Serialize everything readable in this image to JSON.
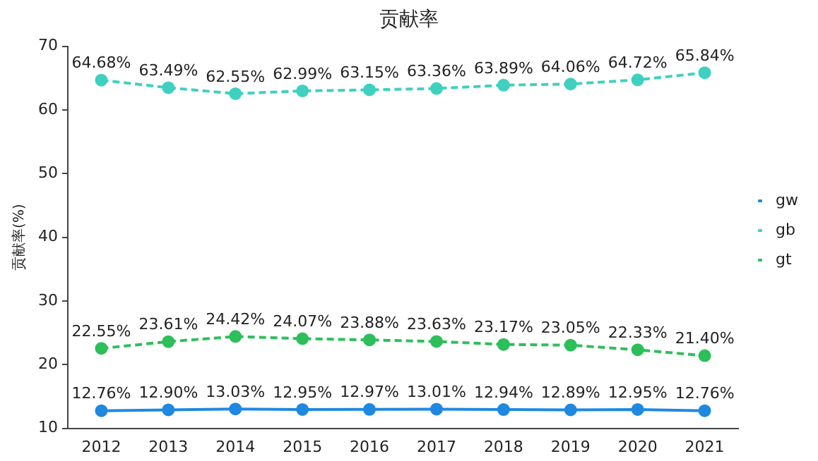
{
  "chart_data": {
    "type": "line",
    "title": "贡献率",
    "ylabel": "贡献率(%)",
    "categories": [
      "2012",
      "2013",
      "2014",
      "2015",
      "2016",
      "2017",
      "2018",
      "2019",
      "2020",
      "2021"
    ],
    "series": [
      {
        "name": "gw",
        "color": "#1f88e0",
        "line_style": "solid",
        "values": [
          12.76,
          12.9,
          13.03,
          12.95,
          12.97,
          13.01,
          12.94,
          12.89,
          12.95,
          12.76
        ],
        "value_labels": [
          "12.76%",
          "12.90%",
          "13.03%",
          "12.95%",
          "12.97%",
          "13.01%",
          "12.94%",
          "12.89%",
          "12.95%",
          "12.76%"
        ]
      },
      {
        "name": "gb",
        "color": "#3fd0c0",
        "line_style": "dashed",
        "values": [
          64.68,
          63.49,
          62.55,
          62.99,
          63.15,
          63.36,
          63.89,
          64.06,
          64.72,
          65.84
        ],
        "value_labels": [
          "64.68%",
          "63.49%",
          "62.55%",
          "62.99%",
          "63.15%",
          "63.36%",
          "63.89%",
          "64.06%",
          "64.72%",
          "65.84%"
        ]
      },
      {
        "name": "gt",
        "color": "#2cbf5a",
        "line_style": "dashed",
        "values": [
          22.55,
          23.61,
          24.42,
          24.07,
          23.88,
          23.63,
          23.17,
          23.05,
          22.33,
          21.4
        ],
        "value_labels": [
          "22.55%",
          "23.61%",
          "24.42%",
          "24.07%",
          "23.88%",
          "23.63%",
          "23.17%",
          "23.05%",
          "22.33%",
          "21.40%"
        ]
      }
    ],
    "ylim": [
      10,
      70
    ],
    "yticks": [
      10,
      20,
      30,
      40,
      50,
      60,
      70
    ],
    "grid": false,
    "legend": "right",
    "marker": "circle"
  }
}
